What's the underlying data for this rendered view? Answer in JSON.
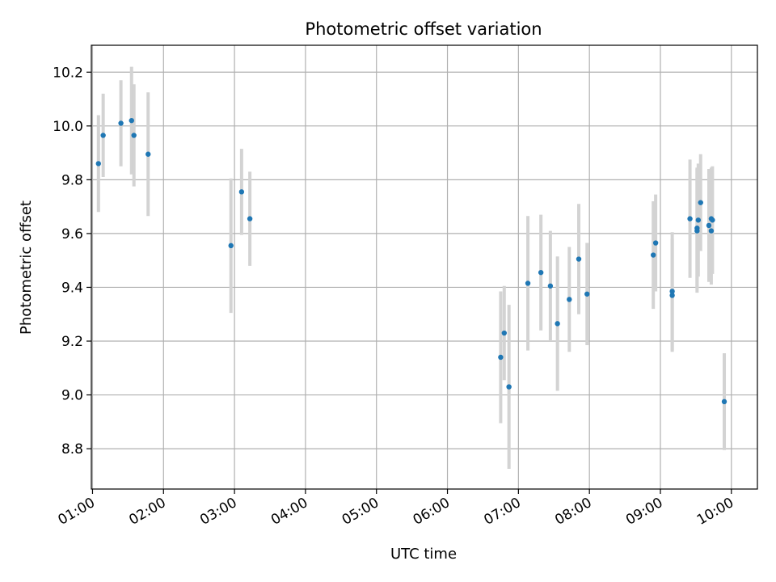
{
  "chart_data": {
    "type": "scatter",
    "title": "Photometric offset variation",
    "xlabel": "UTC time",
    "ylabel": "Photometric offset",
    "x_axis_kind": "time",
    "xlim": [
      "00:59",
      "10:22"
    ],
    "ylim": [
      8.65,
      10.3
    ],
    "grid": true,
    "x_ticks": [
      "01:00",
      "02:00",
      "03:00",
      "04:00",
      "05:00",
      "06:00",
      "07:00",
      "08:00",
      "09:00",
      "10:00"
    ],
    "y_ticks": [
      8.8,
      9.0,
      9.2,
      9.4,
      9.6,
      9.8,
      10.0,
      10.2
    ],
    "y_tick_labels": [
      "8.8",
      "9.0",
      "9.2",
      "9.4",
      "9.6",
      "9.8",
      "10.0",
      "10.2"
    ],
    "marker_color": "#1f77b4",
    "errorbar_color": "#d3d3d3",
    "series": [
      {
        "points": [
          {
            "x": "01:05",
            "y": 9.86,
            "err": 0.18
          },
          {
            "x": "01:09",
            "y": 9.965,
            "err": 0.155
          },
          {
            "x": "01:24",
            "y": 10.01,
            "err": 0.16
          },
          {
            "x": "01:33",
            "y": 10.02,
            "err": 0.2
          },
          {
            "x": "01:35",
            "y": 9.965,
            "err": 0.19
          },
          {
            "x": "01:47",
            "y": 9.895,
            "err": 0.23
          },
          {
            "x": "02:57",
            "y": 9.555,
            "err": 0.25
          },
          {
            "x": "03:06",
            "y": 9.755,
            "err": 0.16
          },
          {
            "x": "03:13",
            "y": 9.655,
            "err": 0.175
          },
          {
            "x": "06:45",
            "y": 9.14,
            "err": 0.245
          },
          {
            "x": "06:48",
            "y": 9.23,
            "err": 0.175
          },
          {
            "x": "06:52",
            "y": 9.03,
            "err": 0.305
          },
          {
            "x": "07:08",
            "y": 9.415,
            "err": 0.25
          },
          {
            "x": "07:19",
            "y": 9.455,
            "err": 0.215
          },
          {
            "x": "07:27",
            "y": 9.405,
            "err": 0.205
          },
          {
            "x": "07:33",
            "y": 9.265,
            "err": 0.25
          },
          {
            "x": "07:43",
            "y": 9.355,
            "err": 0.195
          },
          {
            "x": "07:51",
            "y": 9.505,
            "err": 0.205
          },
          {
            "x": "07:58",
            "y": 9.375,
            "err": 0.19
          },
          {
            "x": "08:54",
            "y": 9.52,
            "err": 0.2
          },
          {
            "x": "08:56",
            "y": 9.565,
            "err": 0.18
          },
          {
            "x": "09:10",
            "y": 9.385,
            "err": 0.22
          },
          {
            "x": "09:10",
            "y": 9.37,
            "err": 0.21
          },
          {
            "x": "09:25",
            "y": 9.655,
            "err": 0.22
          },
          {
            "x": "09:31",
            "y": 9.62,
            "err": 0.225
          },
          {
            "x": "09:31",
            "y": 9.61,
            "err": 0.23
          },
          {
            "x": "09:32",
            "y": 9.65,
            "err": 0.21
          },
          {
            "x": "09:34",
            "y": 9.715,
            "err": 0.18
          },
          {
            "x": "09:41",
            "y": 9.63,
            "err": 0.21
          },
          {
            "x": "09:43",
            "y": 9.655,
            "err": 0.19
          },
          {
            "x": "09:43",
            "y": 9.61,
            "err": 0.2
          },
          {
            "x": "09:44",
            "y": 9.65,
            "err": 0.2
          },
          {
            "x": "09:54",
            "y": 8.975,
            "err": 0.18
          }
        ]
      }
    ]
  }
}
